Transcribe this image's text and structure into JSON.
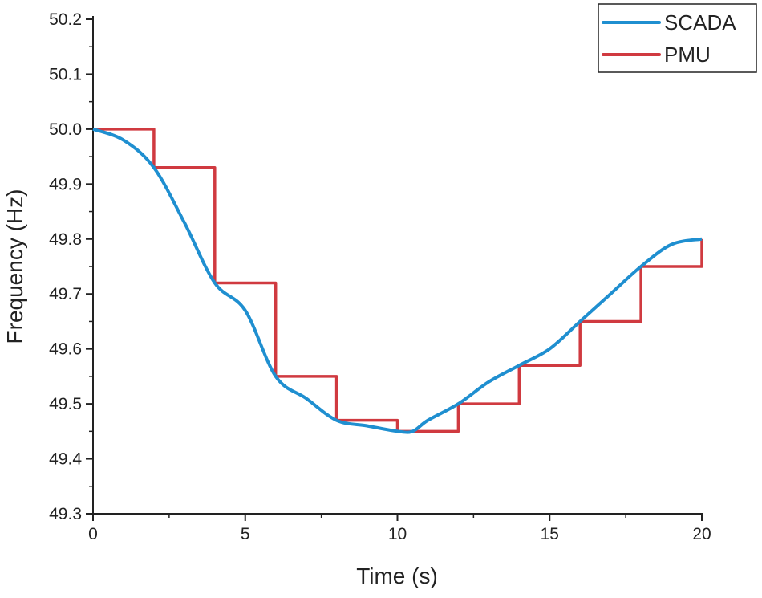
{
  "chart_data": {
    "type": "line",
    "title": "",
    "xlabel": "Time (s)",
    "ylabel": "Frequency (Hz)",
    "xlim": [
      0,
      20
    ],
    "ylim": [
      49.3,
      50.2
    ],
    "xticks": [
      0,
      5,
      10,
      15,
      20
    ],
    "yticks": [
      "49.3",
      "49.4",
      "49.5",
      "49.6",
      "49.7",
      "49.8",
      "49.9",
      "50.0",
      "50.1",
      "50.2"
    ],
    "grid": false,
    "legend_position": "top-right",
    "series": [
      {
        "name": "SCADA",
        "color": "#1f8fd0",
        "style": "smooth",
        "x": [
          0,
          1,
          2,
          3,
          4,
          5,
          6,
          7,
          8,
          9,
          10,
          10.5,
          11,
          12,
          13,
          14,
          15,
          16,
          17,
          18,
          19,
          20
        ],
        "y": [
          50.0,
          49.98,
          49.93,
          49.83,
          49.72,
          49.67,
          49.55,
          49.51,
          49.47,
          49.46,
          49.45,
          49.45,
          49.47,
          49.5,
          49.54,
          49.57,
          49.6,
          49.65,
          49.7,
          49.75,
          49.79,
          49.8
        ]
      },
      {
        "name": "PMU",
        "color": "#d03a40",
        "style": "step",
        "x": [
          0,
          2,
          4,
          6,
          8,
          10,
          12,
          14,
          16,
          18,
          20
        ],
        "y": [
          50.0,
          49.93,
          49.72,
          49.55,
          49.47,
          49.45,
          49.5,
          49.57,
          49.65,
          49.75,
          49.8
        ]
      }
    ]
  }
}
